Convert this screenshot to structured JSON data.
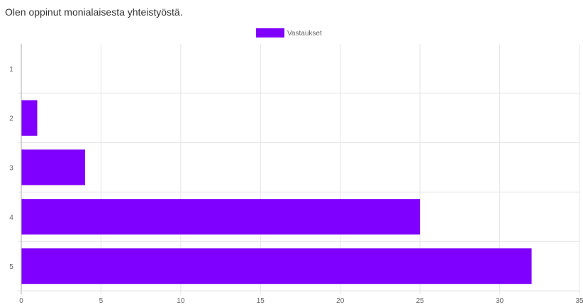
{
  "chart_data": {
    "type": "bar",
    "orientation": "horizontal",
    "title": "Olen oppinut monialaisesta yhteistyöstä.",
    "categories": [
      "1",
      "2",
      "3",
      "4",
      "5"
    ],
    "series": [
      {
        "name": "Vastaukset",
        "values": [
          0,
          1,
          4,
          25,
          32
        ],
        "color": "#7f00ff"
      }
    ],
    "xlim": [
      0,
      35
    ],
    "x_ticks": [
      "0",
      "5",
      "10",
      "15",
      "20",
      "25",
      "30",
      "35"
    ],
    "grid": true,
    "legend_position": "top-center"
  }
}
